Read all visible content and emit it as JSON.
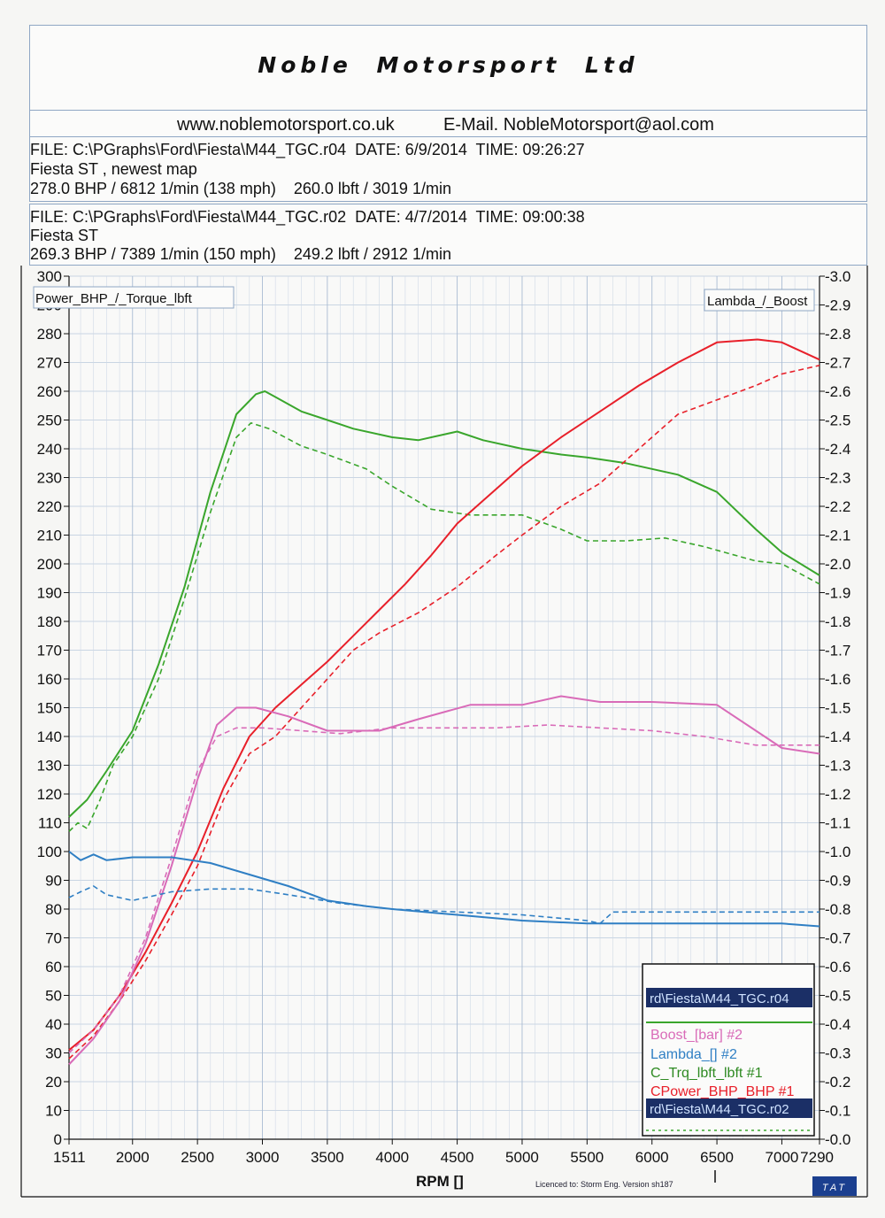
{
  "header": {
    "company": "Noble Motorsport Ltd",
    "website": "www.noblemotorsport.co.uk",
    "email": "E-Mail. NobleMotorsport@aol.com"
  },
  "run1": {
    "file_line": "FILE: C:\\PGraphs\\Ford\\Fiesta\\M44_TGC.r04  DATE: 6/9/2014  TIME: 09:26:27",
    "desc": "Fiesta ST , newest map",
    "peak_line": "278.0 BHP / 6812 1/min (138 mph)    260.0 lbft / 3019 1/min"
  },
  "run2": {
    "file_line": "FILE: C:\\PGraphs\\Ford\\Fiesta\\M44_TGC.r02  DATE: 4/7/2014  TIME: 09:00:38",
    "desc": "Fiesta ST",
    "peak_line": "269.3 BHP / 7389 1/min (150 mph)    249.2 lbft / 2912 1/min"
  },
  "footer": {
    "licence": "Licenced to: Storm Eng.  Version sh187",
    "badge": "TAT"
  },
  "chart_data": {
    "type": "line",
    "xlabel": "RPM  []",
    "left_axis_label": "Power_BHP_/_Torque_lbft",
    "right_axis_label": "Lambda_/_Boost",
    "xlim": [
      1511,
      7290
    ],
    "ylim_left": [
      0,
      300
    ],
    "ylim_right": [
      0.0,
      3.0
    ],
    "x_ticks": [
      1511,
      2000,
      2500,
      3000,
      3500,
      4000,
      4500,
      5000,
      5500,
      6000,
      6500,
      7000,
      7290
    ],
    "y_ticks_left": [
      0,
      10,
      20,
      30,
      40,
      50,
      60,
      70,
      80,
      90,
      100,
      110,
      120,
      130,
      140,
      150,
      160,
      170,
      180,
      190,
      200,
      210,
      220,
      230,
      240,
      250,
      260,
      270,
      280,
      290,
      300
    ],
    "y_ticks_right": [
      "-0.0",
      "-0.1",
      "-0.2",
      "-0.3",
      "-0.4",
      "-0.5",
      "-0.6",
      "-0.7",
      "-0.8",
      "-0.9",
      "-1.0",
      "-1.1",
      "-1.2",
      "-1.3",
      "-1.4",
      "-1.5",
      "-1.6",
      "-1.7",
      "-1.8",
      "-1.9",
      "-2.0",
      "-2.1",
      "-2.2",
      "-2.3",
      "-2.4",
      "-2.5",
      "-2.6",
      "-2.7",
      "-2.8",
      "-2.9",
      "-3.0"
    ],
    "grid": true,
    "legend": {
      "placement": "bottom-right",
      "run1_file": "rd\\Fiesta\\M44_TGC.r04",
      "run2_file": "rd\\Fiesta\\M44_TGC.r02",
      "entries": [
        "Boost_[bar] #2",
        "Lambda_[] #2",
        "C_Trq_lbft_lbft #1",
        "CPower_BHP_BHP #1"
      ]
    },
    "series": [
      {
        "run": "r04",
        "quantity": "torque",
        "axis": "left",
        "color": "#3aa62c",
        "dashed": false,
        "x": [
          1511,
          1650,
          1800,
          2000,
          2200,
          2400,
          2600,
          2800,
          2950,
          3019,
          3100,
          3300,
          3500,
          3700,
          4000,
          4200,
          4500,
          4700,
          5000,
          5300,
          5500,
          5800,
          6000,
          6200,
          6500,
          6800,
          7000,
          7290
        ],
        "y": [
          112,
          118,
          128,
          142,
          165,
          192,
          225,
          252,
          259,
          260,
          258,
          253,
          250,
          247,
          244,
          243,
          246,
          243,
          240,
          238,
          237,
          235,
          233,
          231,
          225,
          212,
          204,
          196
        ]
      },
      {
        "run": "r02",
        "quantity": "torque",
        "axis": "left",
        "color": "#3aa62c",
        "dashed": true,
        "x": [
          1511,
          1580,
          1650,
          1750,
          1850,
          2000,
          2200,
          2400,
          2600,
          2800,
          2912,
          3050,
          3300,
          3500,
          3800,
          4000,
          4300,
          4600,
          5000,
          5300,
          5500,
          5800,
          6100,
          6400,
          6800,
          7000,
          7290
        ],
        "y": [
          107,
          110,
          108,
          118,
          130,
          140,
          160,
          188,
          218,
          244,
          249,
          247,
          241,
          238,
          233,
          227,
          219,
          217,
          217,
          212,
          208,
          208,
          209,
          206,
          201,
          200,
          193
        ]
      },
      {
        "run": "r04",
        "quantity": "power",
        "axis": "left",
        "color": "#e8202a",
        "dashed": false,
        "x": [
          1511,
          1700,
          1900,
          2100,
          2300,
          2500,
          2700,
          2900,
          3100,
          3300,
          3500,
          3700,
          3900,
          4100,
          4300,
          4500,
          4700,
          5000,
          5300,
          5600,
          5900,
          6200,
          6500,
          6812,
          7000,
          7290
        ],
        "y": [
          31,
          38,
          50,
          65,
          82,
          100,
          122,
          140,
          150,
          158,
          166,
          175,
          184,
          193,
          203,
          214,
          222,
          234,
          244,
          253,
          262,
          270,
          277,
          278,
          277,
          271
        ]
      },
      {
        "run": "r02",
        "quantity": "power",
        "axis": "left",
        "color": "#e8202a",
        "dashed": true,
        "x": [
          1511,
          1700,
          1900,
          2100,
          2300,
          2500,
          2700,
          2900,
          3100,
          3300,
          3500,
          3700,
          3900,
          4200,
          4500,
          4800,
          5000,
          5300,
          5600,
          5900,
          6200,
          6500,
          6800,
          7000,
          7290
        ],
        "y": [
          28,
          36,
          48,
          62,
          78,
          95,
          118,
          134,
          140,
          150,
          160,
          170,
          176,
          183,
          192,
          203,
          210,
          220,
          228,
          240,
          252,
          257,
          262,
          266,
          269
        ]
      },
      {
        "run": "r04",
        "quantity": "boost",
        "axis": "right",
        "color": "#d96bb8",
        "dashed": false,
        "x": [
          1511,
          1700,
          1900,
          2100,
          2300,
          2500,
          2650,
          2800,
          2950,
          3200,
          3500,
          3900,
          4200,
          4600,
          5000,
          5300,
          5600,
          6000,
          6500,
          6800,
          7000,
          7290
        ],
        "y": [
          0.26,
          0.35,
          0.48,
          0.68,
          0.95,
          1.25,
          1.44,
          1.5,
          1.5,
          1.47,
          1.42,
          1.42,
          1.46,
          1.51,
          1.51,
          1.54,
          1.52,
          1.52,
          1.51,
          1.42,
          1.36,
          1.34
        ]
      },
      {
        "run": "r02",
        "quantity": "boost",
        "axis": "right",
        "color": "#d96bb8",
        "dashed": true,
        "x": [
          1511,
          1700,
          1900,
          2100,
          2300,
          2500,
          2650,
          2800,
          3000,
          3300,
          3600,
          4000,
          4400,
          4800,
          5200,
          5600,
          6000,
          6400,
          6800,
          7000,
          7290
        ],
        "y": [
          0.3,
          0.38,
          0.5,
          0.7,
          0.98,
          1.28,
          1.4,
          1.43,
          1.43,
          1.42,
          1.41,
          1.43,
          1.43,
          1.43,
          1.44,
          1.43,
          1.42,
          1.4,
          1.37,
          1.37,
          1.37
        ]
      },
      {
        "run": "r04",
        "quantity": "lambda",
        "axis": "right",
        "color": "#2f7fc4",
        "dashed": false,
        "x": [
          1511,
          1600,
          1700,
          1800,
          2000,
          2300,
          2600,
          2900,
          3200,
          3500,
          3800,
          4000,
          4500,
          5000,
          5500,
          6000,
          6500,
          7000,
          7290
        ],
        "y": [
          1.0,
          0.97,
          0.99,
          0.97,
          0.98,
          0.98,
          0.96,
          0.92,
          0.88,
          0.83,
          0.81,
          0.8,
          0.78,
          0.76,
          0.75,
          0.75,
          0.75,
          0.75,
          0.74
        ]
      },
      {
        "run": "r02",
        "quantity": "lambda",
        "axis": "right",
        "color": "#2f7fc4",
        "dashed": true,
        "x": [
          1511,
          1600,
          1700,
          1800,
          2000,
          2300,
          2600,
          2900,
          3200,
          3600,
          4000,
          4500,
          5000,
          5500,
          5600,
          5700,
          6000,
          6500,
          7000,
          7290
        ],
        "y": [
          0.84,
          0.86,
          0.88,
          0.85,
          0.83,
          0.86,
          0.87,
          0.87,
          0.85,
          0.82,
          0.8,
          0.79,
          0.78,
          0.76,
          0.75,
          0.79,
          0.79,
          0.79,
          0.79,
          0.79
        ]
      }
    ]
  }
}
